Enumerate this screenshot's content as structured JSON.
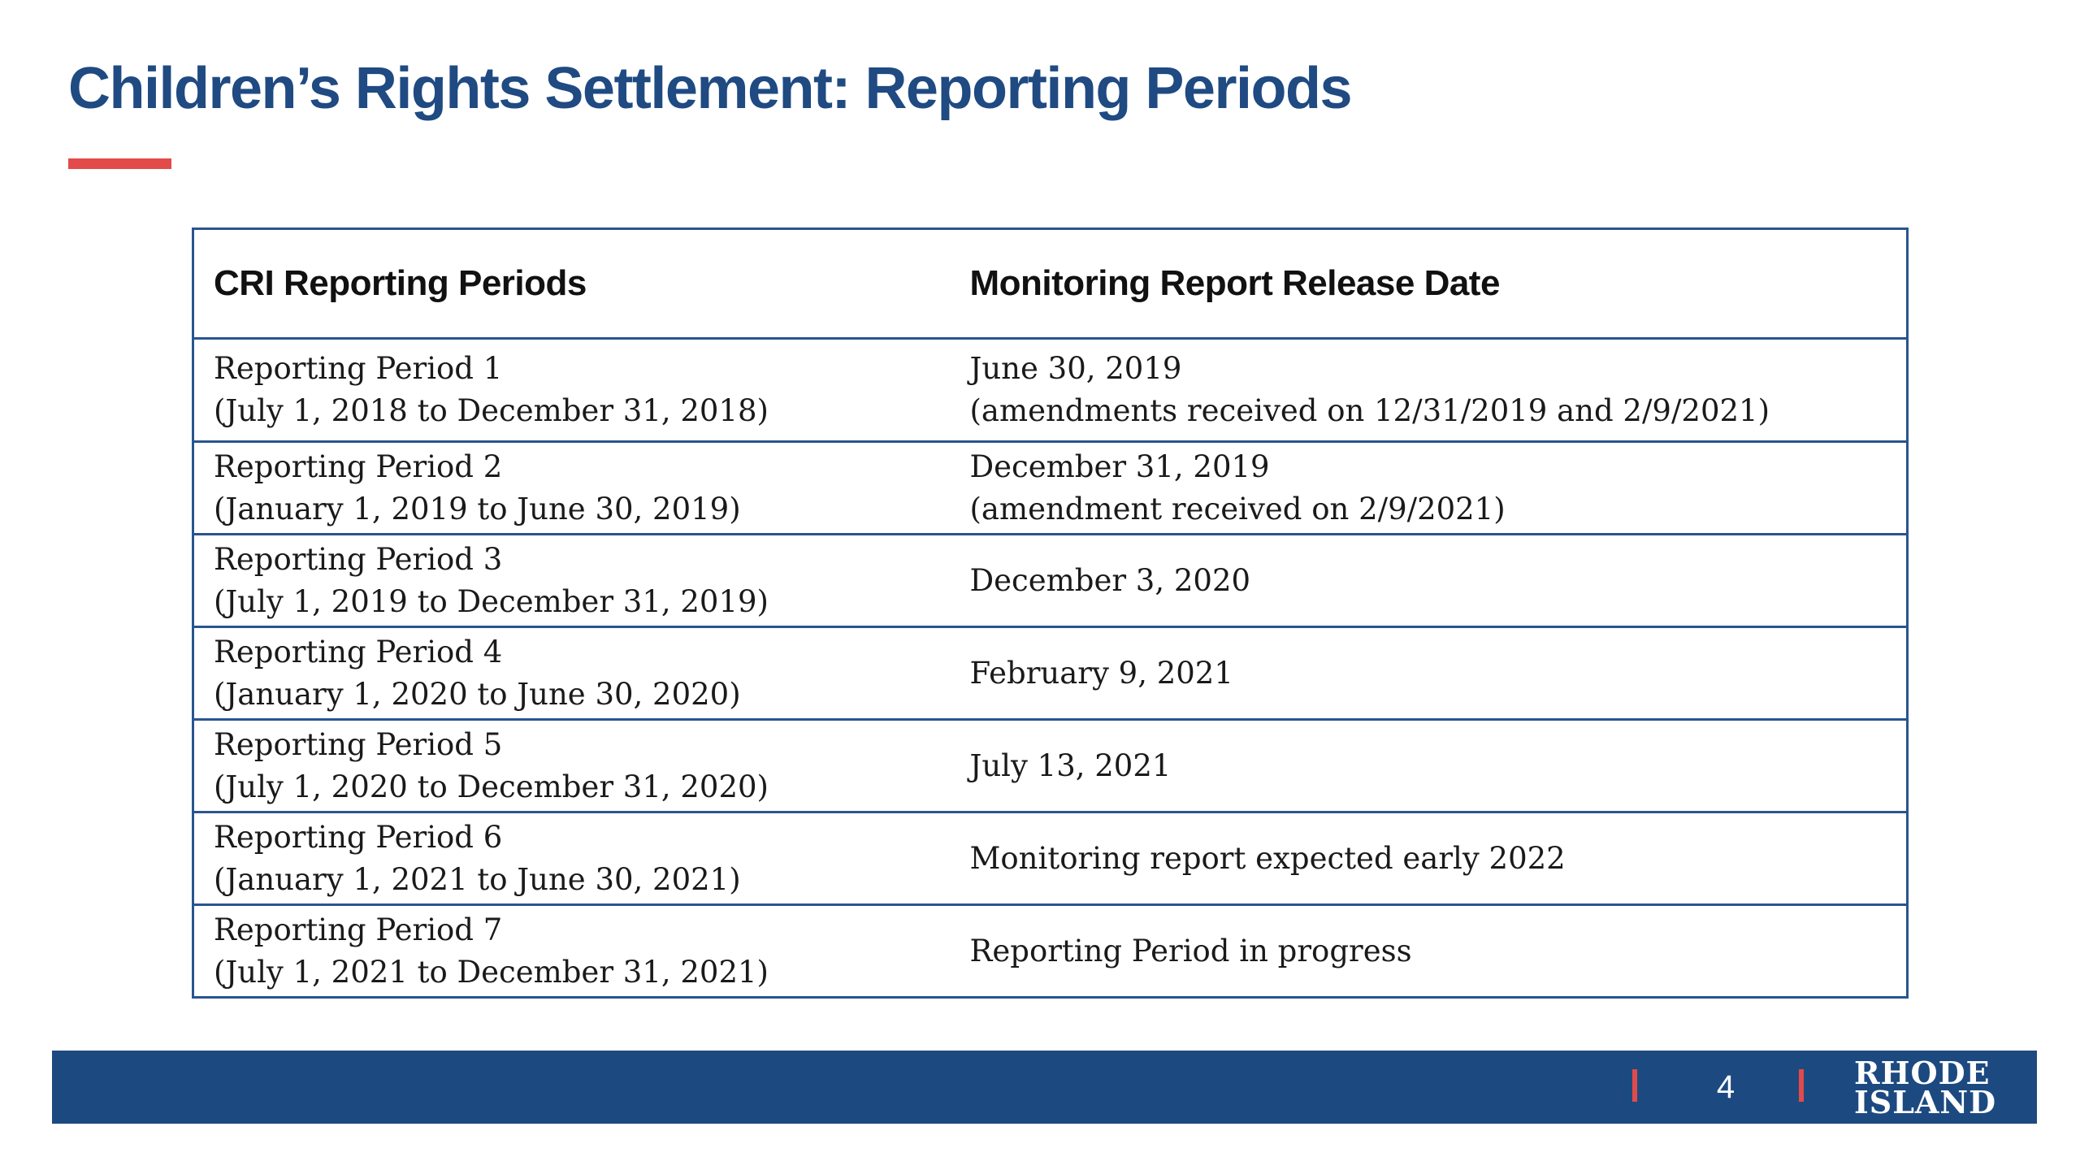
{
  "slide": {
    "title": "Children’s Rights Settlement: Reporting Periods",
    "accent_color": "#e34a4a",
    "title_color": "#1f4a82"
  },
  "table": {
    "headers": [
      "CRI Reporting Periods",
      "Monitoring Report Release Date"
    ],
    "rows": [
      {
        "period": "Reporting Period 1",
        "range": "(July 1, 2018 to December 31, 2018)",
        "release": "June 30, 2019",
        "release_note": "(amendments received on 12/31/2019 and 2/9/2021)"
      },
      {
        "period": "Reporting Period 2",
        "range": "(January 1, 2019 to June 30, 2019)",
        "release": "December 31, 2019",
        "release_note": "(amendment received on 2/9/2021)"
      },
      {
        "period": "Reporting Period 3",
        "range": "(July 1, 2019 to December 31, 2019)",
        "release": "December 3, 2020"
      },
      {
        "period": "Reporting Period 4",
        "range": "(January 1, 2020 to June 30, 2020)",
        "release": "February 9, 2021"
      },
      {
        "period": "Reporting Period 5",
        "range": "(July 1, 2020 to December 31, 2020)",
        "release": "July 13, 2021"
      },
      {
        "period": "Reporting Period 6",
        "range": "(January 1, 2021 to June 30, 2021)",
        "release": "Monitoring report expected early 2022"
      },
      {
        "period": "Reporting Period 7",
        "range": "(July 1, 2021 to December 31, 2021)",
        "release": "Reporting Period in progress"
      }
    ]
  },
  "footer": {
    "page_number": "4",
    "brand_line1": "RHODE",
    "brand_line2": "ISLAND",
    "bar_color": "#1c4a80"
  }
}
